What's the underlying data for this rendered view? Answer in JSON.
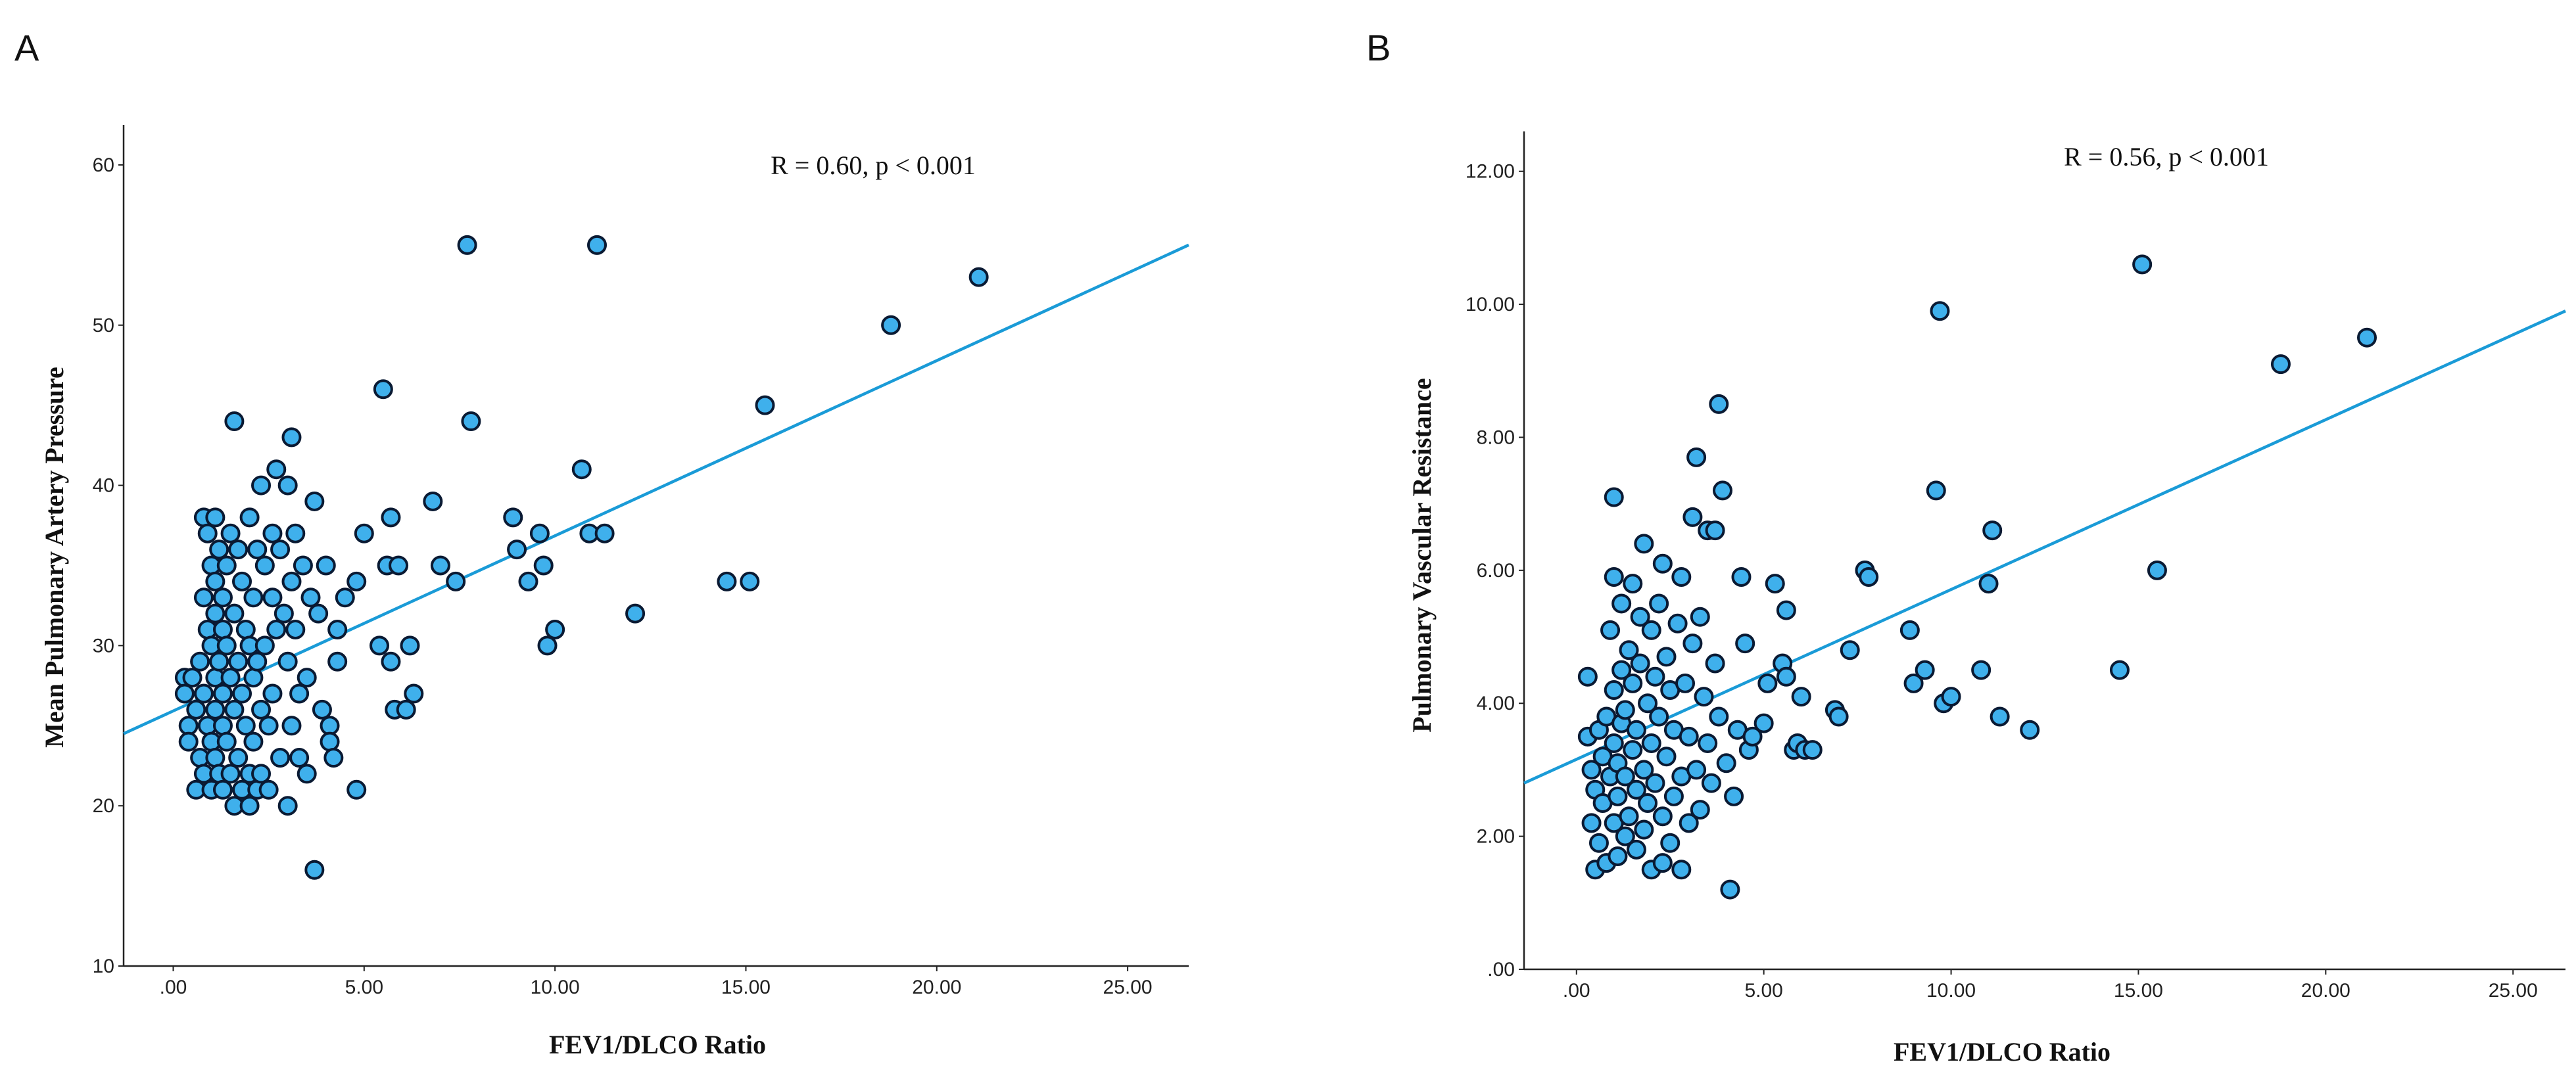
{
  "chart_data": [
    {
      "panel": "A",
      "type": "scatter",
      "xlabel": "FEV1/DLCO Ratio",
      "ylabel": "Mean Pulmonary Artery Pressure",
      "annotation": "R = 0.60, p < 0.001",
      "xlim": [
        -1.3,
        26.6
      ],
      "ylim": [
        10,
        62.5
      ],
      "xticks": [
        0,
        5,
        10,
        15,
        20,
        25
      ],
      "xtick_labels": [
        ".00",
        "5.00",
        "10.00",
        "15.00",
        "20.00",
        "25.00"
      ],
      "yticks": [
        10,
        20,
        30,
        40,
        50,
        60
      ],
      "ytick_labels": [
        "10",
        "20",
        "30",
        "40",
        "50",
        "60"
      ],
      "fit_line": [
        [
          -1.3,
          24.5
        ],
        [
          26.6,
          55.0
        ]
      ],
      "points": [
        [
          0.3,
          28
        ],
        [
          0.3,
          27
        ],
        [
          0.4,
          25
        ],
        [
          0.4,
          24
        ],
        [
          0.5,
          28
        ],
        [
          0.6,
          26
        ],
        [
          0.6,
          21
        ],
        [
          0.7,
          23
        ],
        [
          0.7,
          29
        ],
        [
          0.8,
          33
        ],
        [
          0.8,
          38
        ],
        [
          0.8,
          27
        ],
        [
          0.8,
          22
        ],
        [
          0.9,
          37
        ],
        [
          0.9,
          31
        ],
        [
          0.9,
          25
        ],
        [
          1.0,
          35
        ],
        [
          1.0,
          30
        ],
        [
          1.0,
          24
        ],
        [
          1.0,
          21
        ],
        [
          1.1,
          38
        ],
        [
          1.1,
          34
        ],
        [
          1.1,
          32
        ],
        [
          1.1,
          28
        ],
        [
          1.1,
          26
        ],
        [
          1.1,
          23
        ],
        [
          1.2,
          36
        ],
        [
          1.2,
          29
        ],
        [
          1.2,
          22
        ],
        [
          1.3,
          33
        ],
        [
          1.3,
          31
        ],
        [
          1.3,
          27
        ],
        [
          1.3,
          25
        ],
        [
          1.3,
          21
        ],
        [
          1.4,
          35
        ],
        [
          1.4,
          30
        ],
        [
          1.4,
          24
        ],
        [
          1.5,
          37
        ],
        [
          1.5,
          28
        ],
        [
          1.5,
          22
        ],
        [
          1.6,
          44
        ],
        [
          1.6,
          32
        ],
        [
          1.6,
          26
        ],
        [
          1.6,
          20
        ],
        [
          1.7,
          36
        ],
        [
          1.7,
          29
        ],
        [
          1.7,
          23
        ],
        [
          1.8,
          34
        ],
        [
          1.8,
          27
        ],
        [
          1.8,
          21
        ],
        [
          1.9,
          31
        ],
        [
          1.9,
          25
        ],
        [
          2.0,
          38
        ],
        [
          2.0,
          30
        ],
        [
          2.0,
          22
        ],
        [
          2.0,
          20
        ],
        [
          2.1,
          33
        ],
        [
          2.1,
          28
        ],
        [
          2.1,
          24
        ],
        [
          2.2,
          36
        ],
        [
          2.2,
          29
        ],
        [
          2.2,
          21
        ],
        [
          2.3,
          40
        ],
        [
          2.3,
          26
        ],
        [
          2.3,
          22
        ],
        [
          2.4,
          35
        ],
        [
          2.4,
          30
        ],
        [
          2.5,
          25
        ],
        [
          2.5,
          21
        ],
        [
          2.6,
          37
        ],
        [
          2.6,
          33
        ],
        [
          2.6,
          27
        ],
        [
          2.7,
          41
        ],
        [
          2.7,
          31
        ],
        [
          2.8,
          36
        ],
        [
          2.8,
          23
        ],
        [
          2.9,
          32
        ],
        [
          3.0,
          40
        ],
        [
          3.0,
          29
        ],
        [
          3.0,
          20
        ],
        [
          3.1,
          43
        ],
        [
          3.1,
          34
        ],
        [
          3.1,
          25
        ],
        [
          3.2,
          37
        ],
        [
          3.2,
          31
        ],
        [
          3.3,
          27
        ],
        [
          3.3,
          23
        ],
        [
          3.4,
          35
        ],
        [
          3.5,
          28
        ],
        [
          3.5,
          22
        ],
        [
          3.6,
          33
        ],
        [
          3.7,
          16
        ],
        [
          3.7,
          39
        ],
        [
          3.8,
          32
        ],
        [
          3.9,
          26
        ],
        [
          4.0,
          35
        ],
        [
          4.1,
          25
        ],
        [
          4.1,
          24
        ],
        [
          4.2,
          23
        ],
        [
          4.3,
          29
        ],
        [
          4.3,
          31
        ],
        [
          4.5,
          33
        ],
        [
          4.8,
          21
        ],
        [
          4.8,
          34
        ],
        [
          5.0,
          37
        ],
        [
          5.4,
          30
        ],
        [
          5.5,
          46
        ],
        [
          5.6,
          35
        ],
        [
          5.7,
          38
        ],
        [
          5.7,
          29
        ],
        [
          5.8,
          26
        ],
        [
          5.9,
          35
        ],
        [
          6.1,
          26
        ],
        [
          6.2,
          30
        ],
        [
          6.3,
          27
        ],
        [
          6.8,
          39
        ],
        [
          7.0,
          35
        ],
        [
          7.4,
          34
        ],
        [
          7.7,
          55
        ],
        [
          7.8,
          44
        ],
        [
          8.9,
          38
        ],
        [
          9.0,
          36
        ],
        [
          9.3,
          34
        ],
        [
          9.6,
          37
        ],
        [
          9.7,
          35
        ],
        [
          9.8,
          30
        ],
        [
          10.0,
          31
        ],
        [
          10.7,
          41
        ],
        [
          10.9,
          37
        ],
        [
          11.1,
          55
        ],
        [
          11.3,
          37
        ],
        [
          12.1,
          32
        ],
        [
          14.5,
          34
        ],
        [
          15.1,
          34
        ],
        [
          15.5,
          45
        ],
        [
          18.8,
          50
        ],
        [
          21.1,
          53
        ]
      ]
    },
    {
      "panel": "B",
      "type": "scatter",
      "xlabel": "FEV1/DLCO Ratio",
      "ylabel": "Pulmonary Vascular Resistance",
      "annotation": "R = 0.56, p < 0.001",
      "xlim": [
        -1.4,
        26.4
      ],
      "ylim": [
        0,
        12.6
      ],
      "xticks": [
        0,
        5,
        10,
        15,
        20,
        25
      ],
      "xtick_labels": [
        ".00",
        "5.00",
        "10.00",
        "15.00",
        "20.00",
        "25.00"
      ],
      "yticks": [
        0,
        2,
        4,
        6,
        8,
        10,
        12
      ],
      "ytick_labels": [
        ".00",
        "2.00",
        "4.00",
        "6.00",
        "8.00",
        "10.00",
        "12.00"
      ],
      "fit_line": [
        [
          -1.4,
          2.8
        ],
        [
          26.4,
          9.9
        ]
      ],
      "points": [
        [
          0.3,
          4.4
        ],
        [
          0.3,
          3.5
        ],
        [
          0.4,
          3.0
        ],
        [
          0.4,
          2.2
        ],
        [
          0.5,
          1.5
        ],
        [
          0.5,
          2.7
        ],
        [
          0.6,
          3.6
        ],
        [
          0.6,
          1.9
        ],
        [
          0.7,
          2.5
        ],
        [
          0.7,
          3.2
        ],
        [
          0.8,
          3.8
        ],
        [
          0.8,
          1.6
        ],
        [
          0.9,
          2.9
        ],
        [
          0.9,
          5.1
        ],
        [
          1.0,
          7.1
        ],
        [
          1.0,
          2.2
        ],
        [
          1.0,
          3.4
        ],
        [
          1.0,
          4.2
        ],
        [
          1.0,
          5.9
        ],
        [
          1.1,
          1.7
        ],
        [
          1.1,
          2.6
        ],
        [
          1.1,
          3.1
        ],
        [
          1.2,
          3.7
        ],
        [
          1.2,
          4.5
        ],
        [
          1.2,
          5.5
        ],
        [
          1.3,
          2.0
        ],
        [
          1.3,
          2.9
        ],
        [
          1.3,
          3.9
        ],
        [
          1.4,
          4.8
        ],
        [
          1.4,
          2.3
        ],
        [
          1.5,
          3.3
        ],
        [
          1.5,
          4.3
        ],
        [
          1.5,
          5.8
        ],
        [
          1.6,
          1.8
        ],
        [
          1.6,
          2.7
        ],
        [
          1.6,
          3.6
        ],
        [
          1.7,
          4.6
        ],
        [
          1.7,
          5.3
        ],
        [
          1.8,
          2.1
        ],
        [
          1.8,
          3.0
        ],
        [
          1.8,
          6.4
        ],
        [
          1.9,
          4.0
        ],
        [
          1.9,
          2.5
        ],
        [
          2.0,
          1.5
        ],
        [
          2.0,
          3.4
        ],
        [
          2.0,
          5.1
        ],
        [
          2.1,
          4.4
        ],
        [
          2.1,
          2.8
        ],
        [
          2.2,
          3.8
        ],
        [
          2.2,
          5.5
        ],
        [
          2.3,
          1.6
        ],
        [
          2.3,
          2.3
        ],
        [
          2.3,
          6.1
        ],
        [
          2.4,
          3.2
        ],
        [
          2.4,
          4.7
        ],
        [
          2.5,
          1.9
        ],
        [
          2.5,
          4.2
        ],
        [
          2.6,
          2.6
        ],
        [
          2.6,
          3.6
        ],
        [
          2.7,
          5.2
        ],
        [
          2.8,
          1.5
        ],
        [
          2.8,
          2.9
        ],
        [
          2.8,
          5.9
        ],
        [
          2.9,
          4.3
        ],
        [
          3.0,
          2.2
        ],
        [
          3.0,
          3.5
        ],
        [
          3.1,
          6.8
        ],
        [
          3.1,
          4.9
        ],
        [
          3.2,
          7.7
        ],
        [
          3.2,
          3.0
        ],
        [
          3.3,
          2.4
        ],
        [
          3.3,
          5.3
        ],
        [
          3.4,
          4.1
        ],
        [
          3.5,
          6.6
        ],
        [
          3.5,
          3.4
        ],
        [
          3.6,
          2.8
        ],
        [
          3.7,
          6.6
        ],
        [
          3.7,
          4.6
        ],
        [
          3.8,
          8.5
        ],
        [
          3.8,
          3.8
        ],
        [
          3.9,
          7.2
        ],
        [
          4.0,
          3.1
        ],
        [
          4.1,
          1.2
        ],
        [
          4.2,
          2.6
        ],
        [
          4.3,
          3.6
        ],
        [
          4.4,
          5.9
        ],
        [
          4.5,
          4.9
        ],
        [
          4.6,
          3.3
        ],
        [
          4.7,
          3.5
        ],
        [
          5.0,
          3.7
        ],
        [
          5.1,
          4.3
        ],
        [
          5.3,
          5.8
        ],
        [
          5.5,
          4.6
        ],
        [
          5.6,
          4.4
        ],
        [
          5.6,
          5.4
        ],
        [
          5.8,
          3.3
        ],
        [
          5.9,
          3.4
        ],
        [
          6.0,
          4.1
        ],
        [
          6.1,
          3.3
        ],
        [
          6.3,
          3.3
        ],
        [
          6.9,
          3.9
        ],
        [
          7.0,
          3.8
        ],
        [
          7.3,
          4.8
        ],
        [
          7.7,
          6.0
        ],
        [
          7.8,
          5.9
        ],
        [
          8.9,
          5.1
        ],
        [
          9.0,
          4.3
        ],
        [
          9.3,
          4.5
        ],
        [
          9.6,
          7.2
        ],
        [
          9.7,
          9.9
        ],
        [
          9.8,
          4.0
        ],
        [
          10.0,
          4.1
        ],
        [
          10.8,
          4.5
        ],
        [
          11.0,
          5.8
        ],
        [
          11.1,
          6.6
        ],
        [
          11.3,
          3.8
        ],
        [
          12.1,
          3.6
        ],
        [
          14.5,
          4.5
        ],
        [
          15.1,
          10.6
        ],
        [
          15.5,
          6.0
        ],
        [
          18.8,
          9.1
        ],
        [
          21.1,
          9.5
        ]
      ]
    }
  ]
}
